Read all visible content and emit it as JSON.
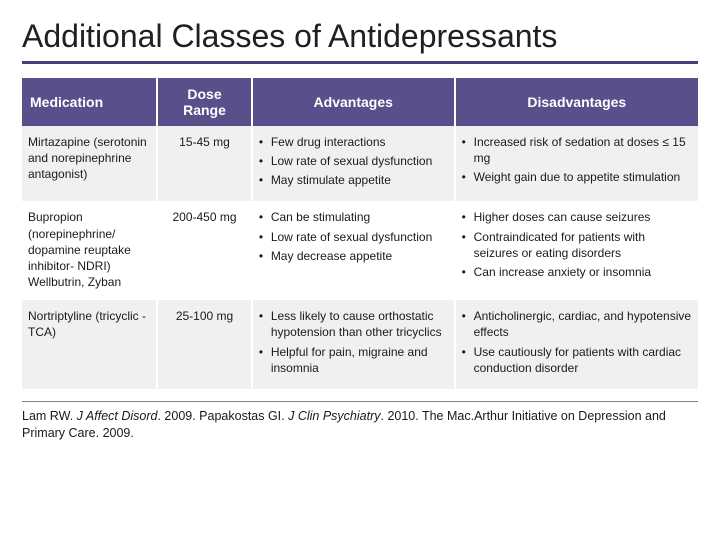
{
  "title": "Additional Classes of Antidepressants",
  "colors": {
    "header_bg": "#5a4f8a",
    "header_text": "#ffffff",
    "row_alt_bg": "#f0f0f0",
    "title_rule": "#4a3f7a"
  },
  "table": {
    "columns": [
      {
        "key": "medication",
        "label": "Medication",
        "width_pct": 20,
        "align": "left"
      },
      {
        "key": "dose",
        "label": "Dose Range",
        "width_pct": 14,
        "align": "center"
      },
      {
        "key": "advantages",
        "label": "Advantages",
        "width_pct": 30,
        "align": "left"
      },
      {
        "key": "disadvantages",
        "label": "Disadvantages",
        "width_pct": 36,
        "align": "left"
      }
    ],
    "rows": [
      {
        "medication": "Mirtazapine (serotonin and norepinephrine antagonist)",
        "dose": "15-45 mg",
        "advantages": [
          "Few drug interactions",
          "Low rate of sexual dysfunction",
          "May stimulate appetite"
        ],
        "disadvantages": [
          "Increased risk of sedation at doses ≤ 15 mg",
          "Weight gain due to appetite stimulation"
        ]
      },
      {
        "medication": "Bupropion (norepinephrine/ dopamine reuptake inhibitor- NDRI) Wellbutrin, Zyban",
        "dose": "200-450 mg",
        "advantages": [
          "Can be stimulating",
          "Low rate of sexual dysfunction",
          "May decrease appetite"
        ],
        "disadvantages": [
          "Higher doses can cause seizures",
          "Contraindicated for patients with seizures or eating disorders",
          "Can increase anxiety or insomnia"
        ]
      },
      {
        "medication": "Nortriptyline (tricyclic - TCA)",
        "dose": "25-100 mg",
        "advantages": [
          "Less likely to cause orthostatic hypotension than other tricyclics",
          "Helpful for pain, migraine and insomnia"
        ],
        "disadvantages": [
          "Anticholinergic, cardiac, and hypotensive effects",
          "Use cautiously for patients with cardiac conduction disorder"
        ]
      }
    ]
  },
  "citation": {
    "parts": [
      {
        "text": "Lam RW. ",
        "style": "normal"
      },
      {
        "text": "J Affect Disord",
        "style": "italic"
      },
      {
        "text": ". 2009. Papakostas GI. ",
        "style": "normal"
      },
      {
        "text": "J Clin Psychiatry",
        "style": "italic"
      },
      {
        "text": ". 2010. The Mac.Arthur Initiative on Depression and Primary Care. 2009.",
        "style": "normal"
      }
    ]
  }
}
